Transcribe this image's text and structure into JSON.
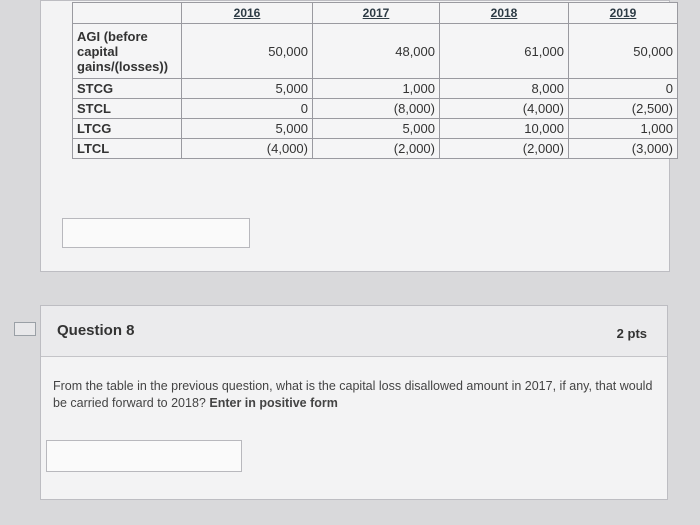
{
  "table": {
    "headers": [
      "",
      "2016",
      "2017",
      "2018",
      "2019"
    ],
    "rows": [
      {
        "label": "AGI (before capital gains/(losses))",
        "values": [
          "50,000",
          "48,000",
          "61,000",
          "50,000"
        ]
      },
      {
        "label": "STCG",
        "values": [
          "5,000",
          "1,000",
          "8,000",
          "0"
        ]
      },
      {
        "label": "STCL",
        "values": [
          "0",
          "(8,000)",
          "(4,000)",
          "(2,500)"
        ]
      },
      {
        "label": "LTCG",
        "values": [
          "5,000",
          "5,000",
          "10,000",
          "1,000"
        ]
      },
      {
        "label": "LTCL",
        "values": [
          "(4,000)",
          "(2,000)",
          "(2,000)",
          "(3,000)"
        ]
      }
    ]
  },
  "question": {
    "title": "Question 8",
    "points": "2 pts",
    "text": "From the table in the previous question, what is the capital loss disallowed amount in 2017, if any, that would be carried forward to 2018?",
    "emphasis": "Enter in positive form"
  }
}
